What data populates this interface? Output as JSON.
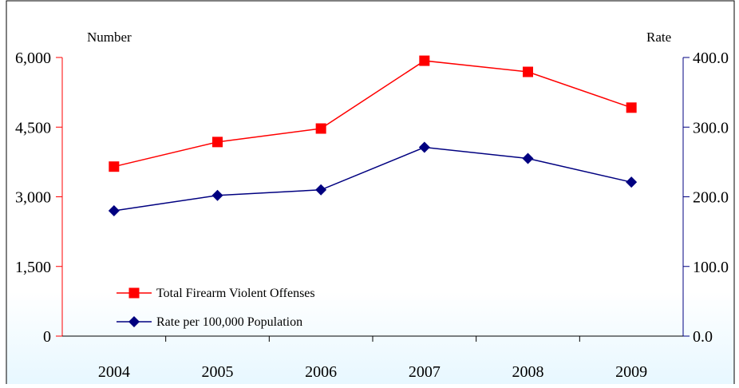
{
  "chart_data": {
    "type": "line",
    "categories": [
      "2004",
      "2005",
      "2006",
      "2007",
      "2008",
      "2009"
    ],
    "y_left": {
      "label": "Number",
      "range": [
        0,
        6000
      ],
      "ticks": [
        0,
        1500,
        3000,
        4500,
        6000
      ],
      "tick_labels": [
        "0",
        "1,500",
        "3,000",
        "4,500",
        "6,000"
      ],
      "color": "#FF0000"
    },
    "y_right": {
      "label": "Rate",
      "range": [
        0,
        400
      ],
      "ticks": [
        0,
        100,
        200,
        300,
        400
      ],
      "tick_labels": [
        "0.0",
        "100.0",
        "200.0",
        "300.0",
        "400.0"
      ],
      "color": "#000080"
    },
    "series": [
      {
        "name": "Total Firearm Violent Offenses",
        "axis": "left",
        "color": "#FF0000",
        "marker": "square",
        "values": [
          3650,
          4180,
          4470,
          5930,
          5690,
          4920
        ]
      },
      {
        "name": "Rate per 100,000 Population",
        "axis": "right",
        "color": "#000080",
        "marker": "diamond",
        "values": [
          180,
          202,
          210,
          271,
          255,
          221
        ]
      }
    ],
    "grid": false,
    "legend_position": "bottom-left",
    "background": "#E6F7FF"
  }
}
